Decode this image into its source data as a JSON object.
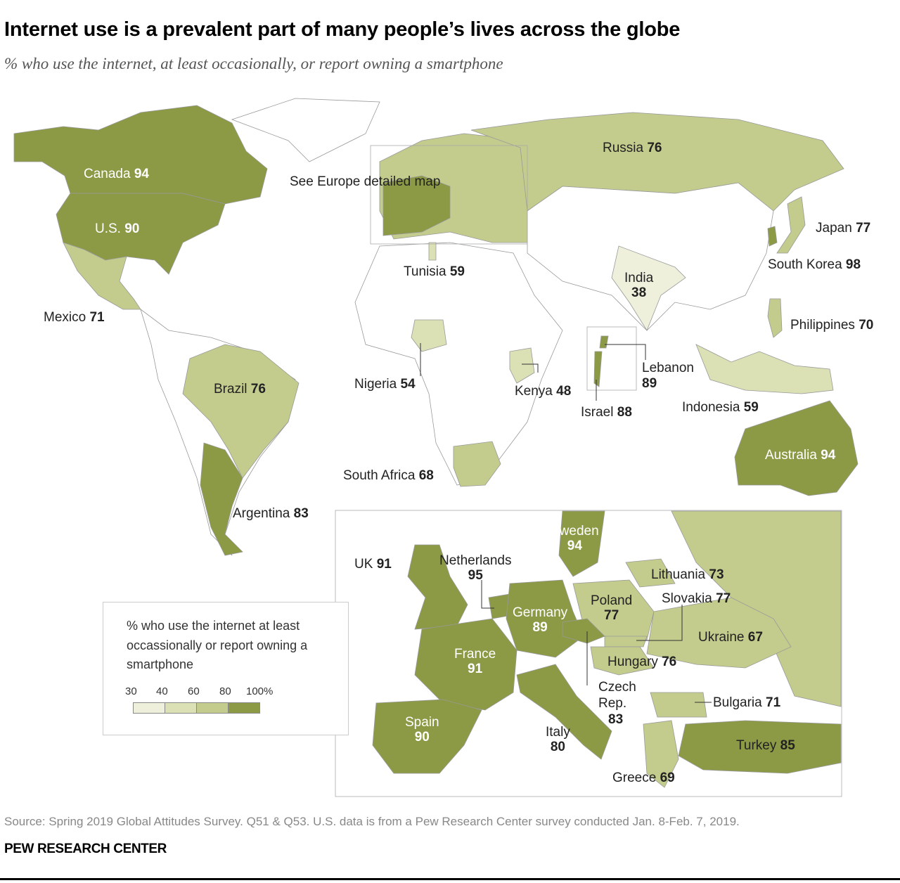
{
  "title": "Internet use is a prevalent part of many people’s lives across the globe",
  "subtitle": "% who use the internet, at least occasionally, or report owning a smartphone",
  "europe_callout": "See Europe detailed map",
  "legend": {
    "title": "% who use the internet at least occassionally or report owning a smartphone",
    "ticks": [
      "30",
      "40",
      "60",
      "80",
      "100%"
    ],
    "bins": [
      {
        "min": 30,
        "max": 40,
        "color": "#eef0dc"
      },
      {
        "min": 40,
        "max": 60,
        "color": "#dbe1b5"
      },
      {
        "min": 60,
        "max": 80,
        "color": "#c3cc8d"
      },
      {
        "min": 80,
        "max": 100,
        "color": "#8c9a46"
      }
    ],
    "no_data_color": "#ffffff"
  },
  "countries": [
    {
      "name": "Canada",
      "value": 94
    },
    {
      "name": "U.S.",
      "value": 90
    },
    {
      "name": "Mexico",
      "value": 71
    },
    {
      "name": "Brazil",
      "value": 76
    },
    {
      "name": "Argentina",
      "value": 83
    },
    {
      "name": "Russia",
      "value": 76
    },
    {
      "name": "Japan",
      "value": 77
    },
    {
      "name": "South Korea",
      "value": 98
    },
    {
      "name": "India",
      "value": 38
    },
    {
      "name": "Philippines",
      "value": 70
    },
    {
      "name": "Indonesia",
      "value": 59
    },
    {
      "name": "Australia",
      "value": 94
    },
    {
      "name": "Tunisia",
      "value": 59
    },
    {
      "name": "Nigeria",
      "value": 54
    },
    {
      "name": "Kenya",
      "value": 48
    },
    {
      "name": "South Africa",
      "value": 68
    },
    {
      "name": "Lebanon",
      "value": 89
    },
    {
      "name": "Israel",
      "value": 88
    },
    {
      "name": "Sweden",
      "value": 94
    },
    {
      "name": "UK",
      "value": 91
    },
    {
      "name": "Netherlands",
      "value": 95
    },
    {
      "name": "Germany",
      "value": 89
    },
    {
      "name": "France",
      "value": 91
    },
    {
      "name": "Spain",
      "value": 90
    },
    {
      "name": "Italy",
      "value": 80
    },
    {
      "name": "Poland",
      "value": 77
    },
    {
      "name": "Lithuania",
      "value": 73
    },
    {
      "name": "Slovakia",
      "value": 77
    },
    {
      "name": "Ukraine",
      "value": 67
    },
    {
      "name": "Hungary",
      "value": 76
    },
    {
      "name": "Czech Rep.",
      "value": 83
    },
    {
      "name": "Bulgaria",
      "value": 71
    },
    {
      "name": "Turkey",
      "value": 85
    },
    {
      "name": "Greece",
      "value": 69
    }
  ],
  "source": "Source: Spring 2019 Global Attitudes Survey. Q51 & Q53. U.S. data is from a Pew Research Center survey conducted Jan. 8-Feb. 7, 2019.",
  "brand": "PEW RESEARCH CENTER"
}
